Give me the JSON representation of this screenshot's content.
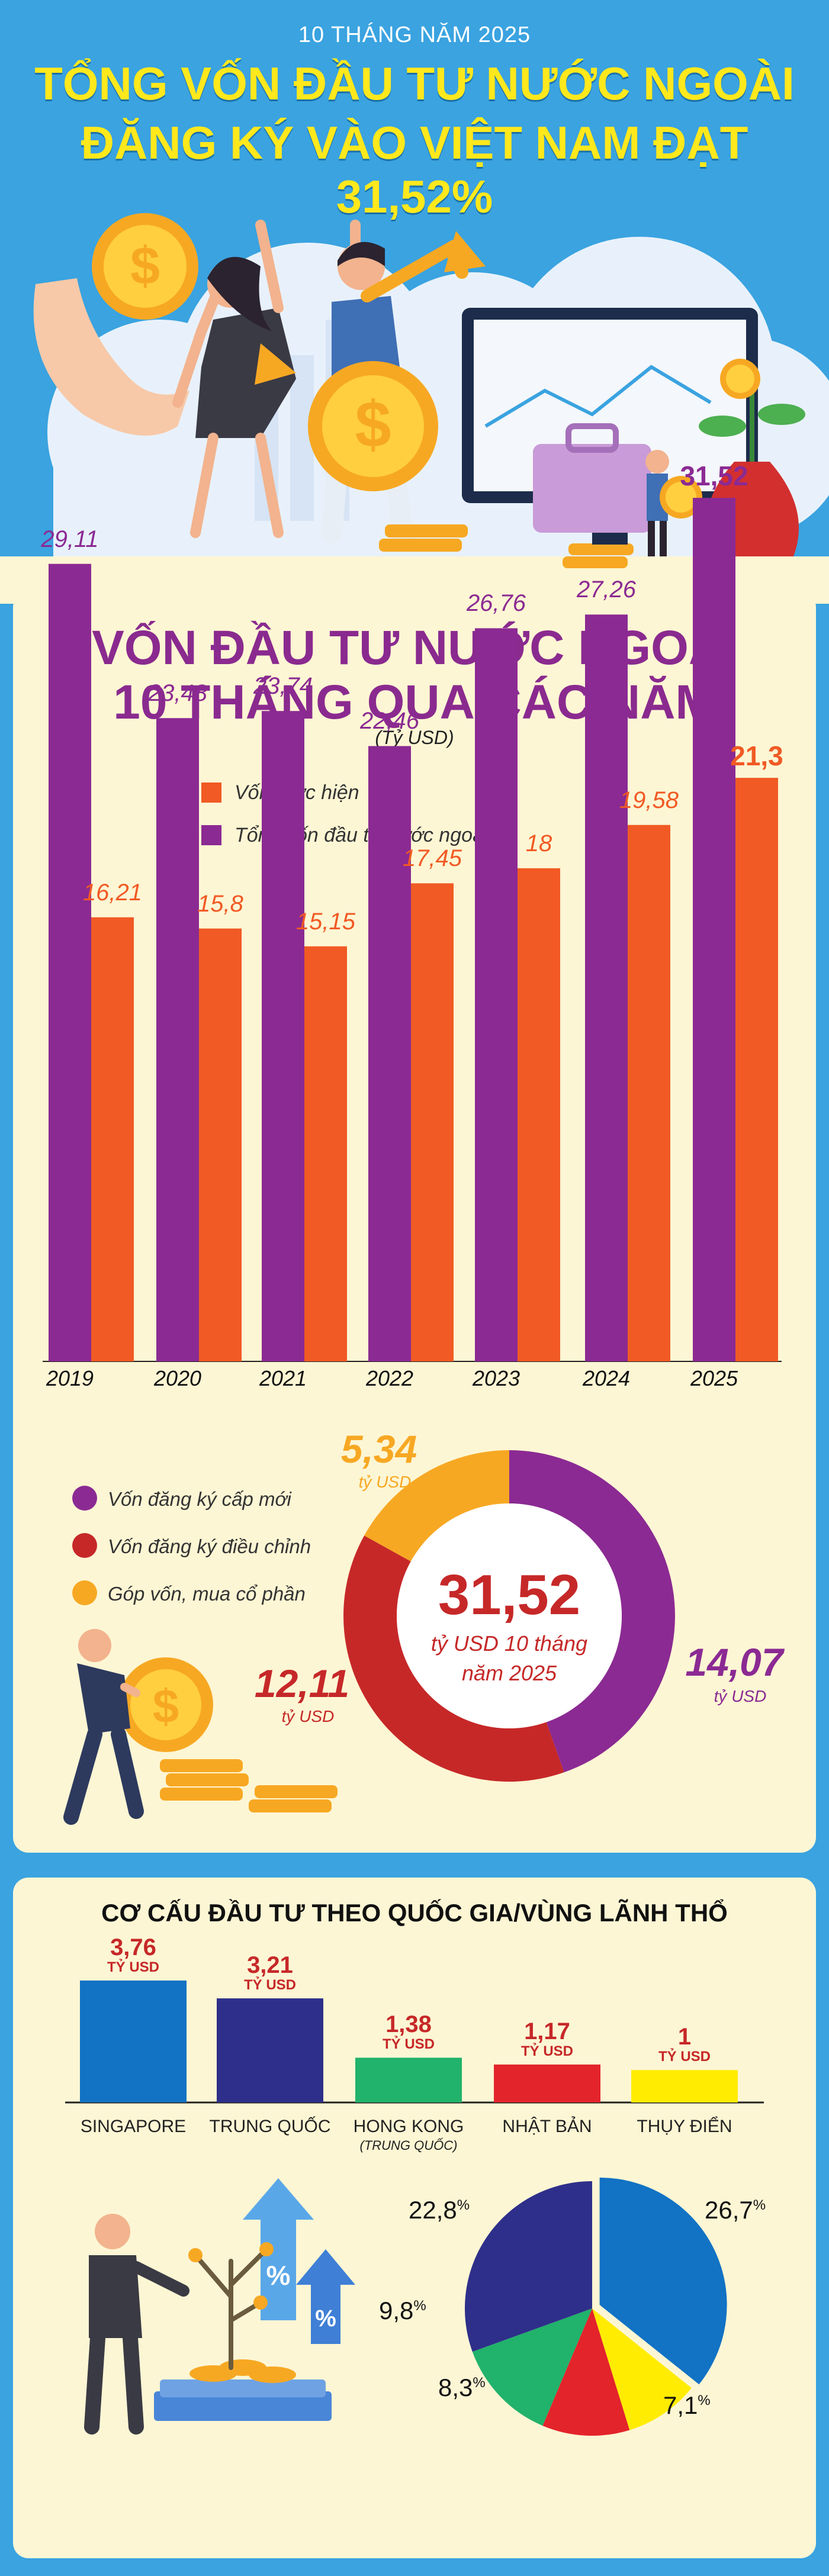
{
  "header": {
    "kicker": "10 THÁNG NĂM 2025",
    "headline_line1": "TỔNG VỐN ĐẦU TƯ NƯỚC NGOÀI",
    "headline_line2": "ĐĂNG KÝ VÀO VIỆT NAM ĐẠT 31,52%"
  },
  "colors": {
    "background": "#3aa3e0",
    "panel": "#fdf6d4",
    "purple": "#8b2a93",
    "orange": "#f15a24",
    "red": "#c62828",
    "amber": "#f7a823",
    "yellow_title": "#ffe81c"
  },
  "chart_data": [
    {
      "type": "bar",
      "title": "VỐN ĐẦU TƯ NƯỚC NGOÀI",
      "title_line2": "10 THÁNG QUA CÁC NĂM",
      "unit": "(Tỷ USD)",
      "categories": [
        "2019",
        "2020",
        "2021",
        "2022",
        "2023",
        "2024",
        "2025"
      ],
      "series": [
        {
          "name": "Tổng vốn đầu tư nước ngoài",
          "color": "#8b2a93",
          "values": [
            29.11,
            23.48,
            23.74,
            22.46,
            26.76,
            27.26,
            31.52
          ],
          "labels": [
            "29,11",
            "23,48",
            "23,74",
            "22,46",
            "26,76",
            "27,26",
            "31,52"
          ]
        },
        {
          "name": "Vốn thực hiện",
          "color": "#f15a24",
          "values": [
            16.21,
            15.8,
            15.15,
            17.45,
            18,
            19.58,
            21.3
          ],
          "labels": [
            "16,21",
            "15,8",
            "15,15",
            "17,45",
            "18",
            "19,58",
            "21,3"
          ]
        }
      ],
      "legend_order": [
        "Vốn thực hiện",
        "Tổng vốn đầu tư nước ngoài"
      ],
      "ylim": [
        0,
        35
      ],
      "grid": false
    },
    {
      "type": "pie",
      "variant": "donut",
      "center_value": "31,52",
      "center_unit_line1": "tỷ USD 10 tháng",
      "center_unit_line2": "năm 2025",
      "slices": [
        {
          "name": "Vốn đăng ký cấp mới",
          "value": 14.07,
          "label": "14,07",
          "unit": "tỷ USD",
          "color": "#8b2a93"
        },
        {
          "name": "Vốn đăng ký điều chỉnh",
          "value": 12.11,
          "label": "12,11",
          "unit": "tỷ USD",
          "color": "#c62828"
        },
        {
          "name": "Góp vốn, mua cổ phần",
          "value": 5.34,
          "label": "5,34",
          "unit": "tỷ USD",
          "color": "#f7a823"
        }
      ]
    },
    {
      "type": "bar",
      "title": "CƠ CẤU ĐẦU TƯ THEO QUỐC GIA/VÙNG LÃNH THỔ",
      "categories": [
        "SINGAPORE",
        "TRUNG QUỐC",
        "HONG KONG",
        "NHẬT BẢN",
        "THỤY ĐIỂN"
      ],
      "category_sublabels": [
        "",
        "",
        "(TRUNG QUỐC)",
        "",
        ""
      ],
      "values": [
        3.76,
        3.21,
        1.38,
        1.17,
        1
      ],
      "labels": [
        "3,76",
        "3,21",
        "1,38",
        "1,17",
        "1"
      ],
      "unit": "TỶ USD",
      "colors": [
        "#1272c4",
        "#2e2f8a",
        "#21b26b",
        "#e3242b",
        "#ffec00"
      ],
      "ylim": [
        0,
        4
      ]
    },
    {
      "type": "pie",
      "slices": [
        {
          "value": 26.7,
          "label": "26,7",
          "color": "#1272c4"
        },
        {
          "value": 7.1,
          "label": "7,1",
          "color": "#ffec00"
        },
        {
          "value": 8.3,
          "label": "8,3",
          "color": "#e3242b"
        },
        {
          "value": 9.8,
          "label": "9,8",
          "color": "#21b26b"
        },
        {
          "value": 22.8,
          "label": "22,8",
          "color": "#2e2f8a"
        }
      ],
      "percent_sign": "%"
    }
  ]
}
